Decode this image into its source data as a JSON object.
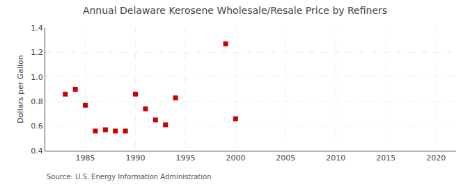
{
  "chart_data": {
    "type": "scatter",
    "title": "Annual Delaware Kerosene Wholesale/Resale Price by Refiners",
    "ylabel": "Dollars per Gallon",
    "annotations": [
      "Source: U.S. Energy Information Administration"
    ],
    "x": [
      1983,
      1984,
      1985,
      1986,
      1987,
      1988,
      1989,
      1990,
      1991,
      1992,
      1993,
      1994,
      1999,
      2000
    ],
    "values": [
      0.86,
      0.9,
      0.77,
      0.56,
      0.57,
      0.56,
      0.56,
      0.86,
      0.74,
      0.65,
      0.61,
      0.83,
      1.27,
      0.66
    ],
    "color": "#cc0000",
    "marker": "square",
    "xlim": [
      1981,
      2022
    ],
    "xticks": [
      1985,
      1990,
      1995,
      2000,
      2005,
      2010,
      2015,
      2020
    ],
    "ylim": [
      0.4,
      1.4
    ],
    "yticks": [
      0.4,
      0.6,
      0.8,
      {
        "value": 1.0,
        "label": "1.0"
      },
      1.2,
      1.4
    ],
    "grid": true
  }
}
